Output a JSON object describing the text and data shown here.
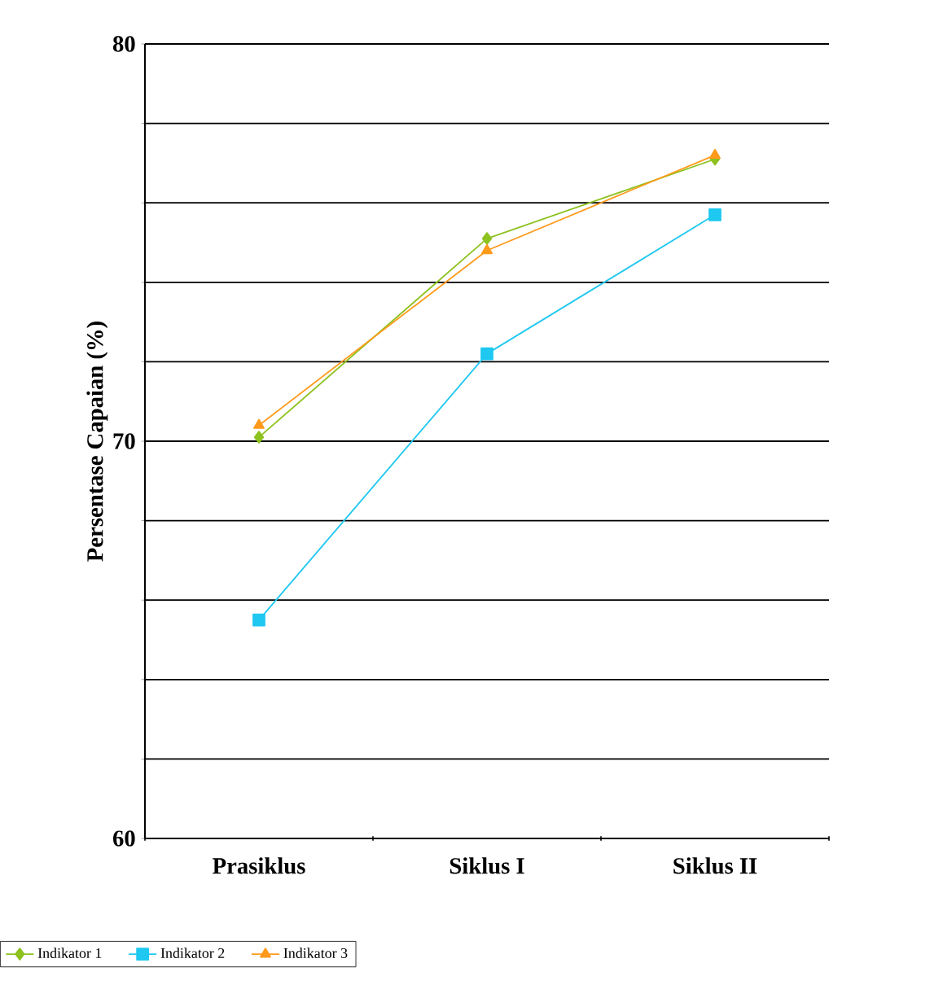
{
  "chart_data": {
    "type": "line",
    "ylabel": "Persentase Capaian (%)",
    "categories": [
      "Prasiklus",
      "Siklus I",
      "Siklus II"
    ],
    "series": [
      {
        "name": "Indikator 1",
        "color": "#8dc21f",
        "marker": "diamond",
        "values": [
          70.1,
          75.1,
          77.1
        ]
      },
      {
        "name": "Indikator 2",
        "color": "#1ec8f0",
        "marker": "square",
        "values": [
          65.5,
          72.2,
          75.7
        ]
      },
      {
        "name": "Indikator 3",
        "color": "#ff9a1a",
        "marker": "triangle",
        "values": [
          70.4,
          74.8,
          77.2
        ]
      }
    ],
    "ylim": [
      60,
      80
    ],
    "yticks": [
      60,
      {
        "value": 62,
        "label": null
      },
      {
        "value": 64,
        "label": null
      },
      {
        "value": 66,
        "label": null
      },
      {
        "value": 68,
        "label": null
      },
      70,
      {
        "value": 72,
        "label": null
      },
      {
        "value": 74,
        "label": null
      },
      {
        "value": 76,
        "label": null
      },
      {
        "value": 78,
        "label": null
      },
      80
    ],
    "grid": "y",
    "legend": "bottom",
    "line_style": "solid"
  }
}
